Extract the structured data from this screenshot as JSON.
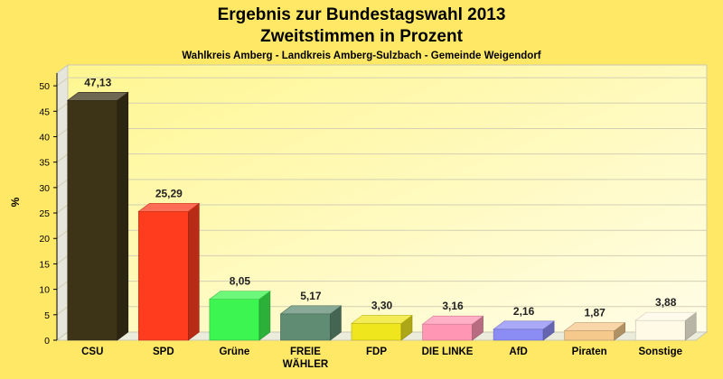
{
  "chart_data": {
    "type": "bar",
    "title": "Ergebnis zur Bundestagswahl 2013",
    "title_line2": "Zweitstimmen in Prozent",
    "subtitle": "Wahlkreis Amberg - Landkreis Amberg-Sulzbach - Gemeinde Weigendorf",
    "ylabel": "%",
    "xlabel": "",
    "ylim": [
      0,
      50
    ],
    "yticks": [
      0,
      5,
      10,
      15,
      20,
      25,
      30,
      35,
      40,
      45,
      50
    ],
    "grid": true,
    "legend": "none",
    "categories": [
      "CSU",
      "SPD",
      "Grüne",
      "FREIE WÄHLER",
      "FDP",
      "DIE LINKE",
      "AfD",
      "Piraten",
      "Sonstige"
    ],
    "category_lines": [
      [
        "CSU"
      ],
      [
        "SPD"
      ],
      [
        "Grüne"
      ],
      [
        "FREIE",
        "WÄHLER"
      ],
      [
        "FDP"
      ],
      [
        "DIE LINKE"
      ],
      [
        "AfD"
      ],
      [
        "Piraten"
      ],
      [
        "Sonstige"
      ]
    ],
    "values": [
      47.13,
      25.29,
      8.05,
      5.17,
      3.3,
      3.16,
      2.16,
      1.87,
      3.88
    ],
    "value_labels": [
      "47,13",
      "25,29",
      "8,05",
      "5,17",
      "3,30",
      "3,16",
      "2,16",
      "1,87",
      "3,88"
    ],
    "colors": [
      "#3d3418",
      "#ff3c1e",
      "#3cf550",
      "#5f8c72",
      "#f0e61e",
      "#ff96b4",
      "#8c8cf5",
      "#f5c88c",
      "#fffae6"
    ]
  }
}
